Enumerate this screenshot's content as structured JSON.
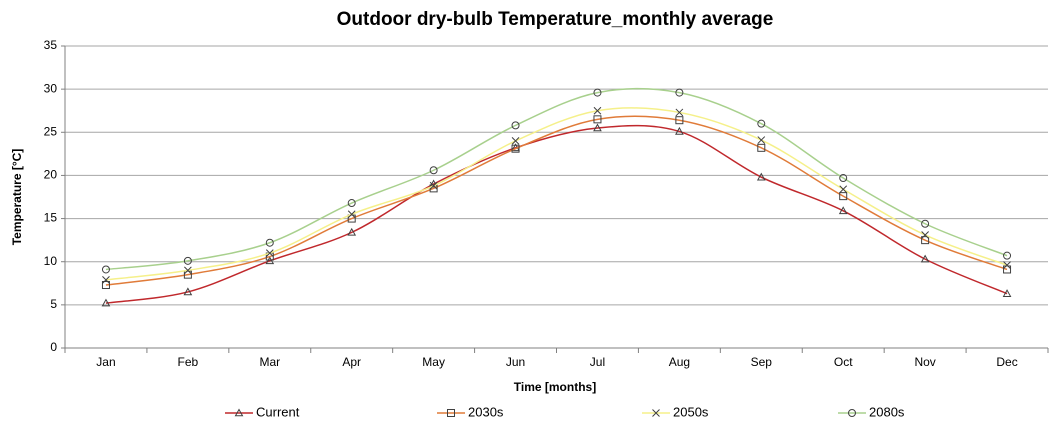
{
  "chart_data": {
    "type": "line",
    "title": "Outdoor dry-bulb Temperature_monthly average",
    "x_label": "Time [months]",
    "y_label": "Temperature [°C]",
    "categories": [
      "Jan",
      "Feb",
      "Mar",
      "Apr",
      "May",
      "Jun",
      "Jul",
      "Aug",
      "Sep",
      "Oct",
      "Nov",
      "Dec"
    ],
    "series": [
      {
        "name": "Current",
        "color": "#c0282c",
        "marker": "triangle",
        "values": [
          5.2,
          6.5,
          10.1,
          13.4,
          19.0,
          23.2,
          25.5,
          25.1,
          19.8,
          15.9,
          10.3,
          6.3
        ]
      },
      {
        "name": "2030s",
        "color": "#e07b39",
        "marker": "square",
        "values": [
          7.3,
          8.5,
          10.6,
          15.0,
          18.5,
          23.1,
          26.5,
          26.4,
          23.2,
          17.6,
          12.5,
          9.1
        ]
      },
      {
        "name": "2050s",
        "color": "#f5f08a",
        "marker": "cross",
        "values": [
          7.9,
          9.0,
          11.0,
          15.5,
          18.8,
          24.0,
          27.5,
          27.3,
          24.1,
          18.4,
          13.1,
          9.6
        ]
      },
      {
        "name": "2080s",
        "color": "#a8d08d",
        "marker": "circle",
        "values": [
          9.1,
          10.1,
          12.2,
          16.8,
          20.6,
          25.8,
          29.6,
          29.6,
          26.0,
          19.7,
          14.4,
          10.7
        ]
      }
    ],
    "ylim": [
      0,
      35
    ],
    "yticks": [
      0,
      5,
      10,
      15,
      20,
      25,
      30,
      35
    ],
    "grid": true,
    "legend": "bottom"
  }
}
